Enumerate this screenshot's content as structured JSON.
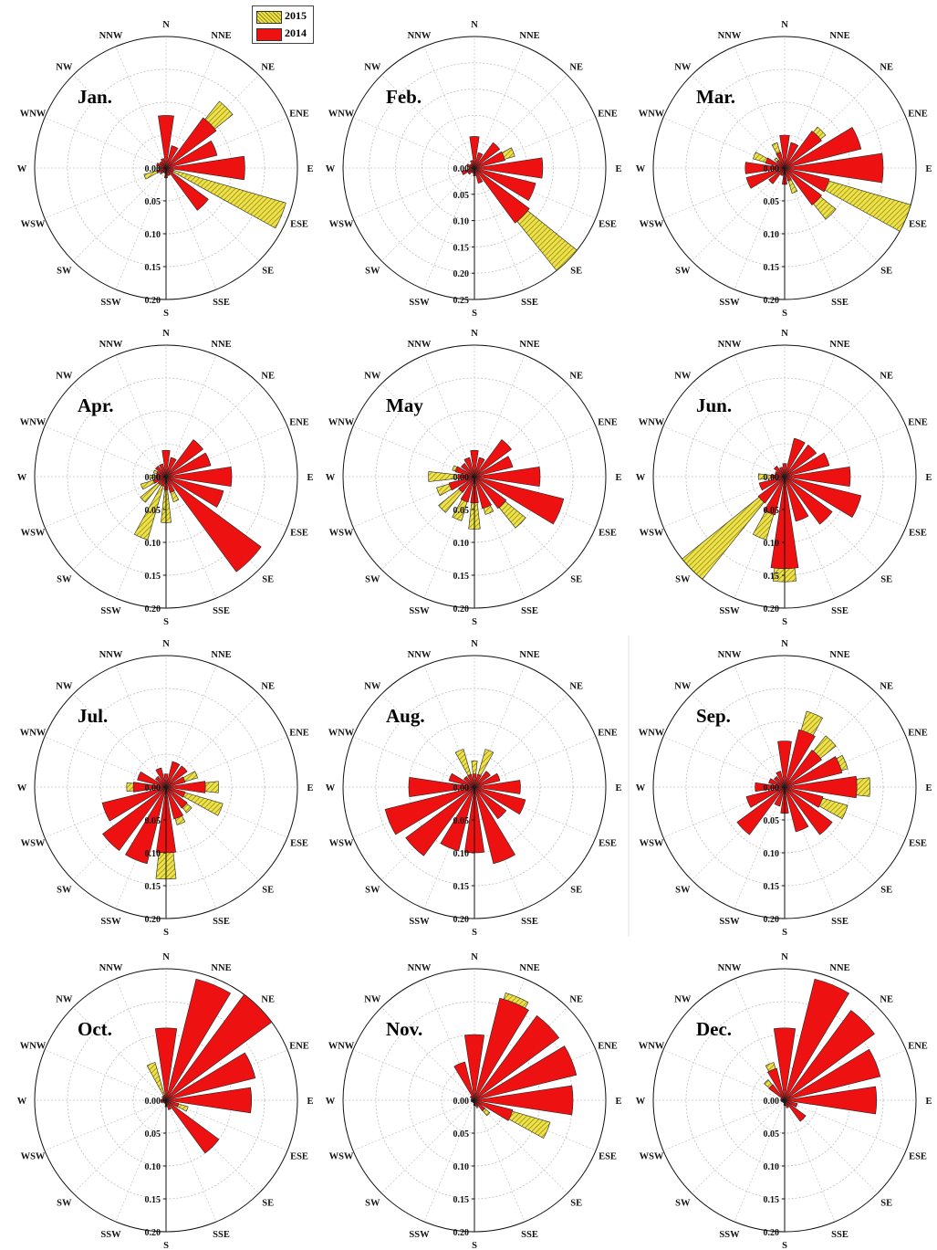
{
  "chart_data": {
    "type": "wind-rose",
    "legend": [
      {
        "name": "2015",
        "color": "#e8e040",
        "pattern": "hatched"
      },
      {
        "name": "2014",
        "color": "#ee1111",
        "pattern": "solid"
      }
    ],
    "directions": [
      "N",
      "NNE",
      "NE",
      "ENE",
      "E",
      "ESE",
      "SE",
      "SSE",
      "S",
      "SSW",
      "SW",
      "WSW",
      "W",
      "WNW",
      "NW",
      "NNW"
    ],
    "radial_unit": "frequency",
    "panels": [
      {
        "month": "Jan.",
        "rmax": 0.2,
        "radial_ticks": [
          "0.00",
          "0.05",
          "0.10",
          "0.15",
          "0.20"
        ],
        "series": [
          {
            "name": "2014",
            "values": [
              0.08,
              0.035,
              0.095,
              0.08,
              0.12,
              0.012,
              0.08,
              0.012,
              0.015,
              0.008,
              0.01,
              0.015,
              0.008,
              0.015,
              0.012,
              0.015
            ]
          },
          {
            "name": "2015",
            "values": [
              0.06,
              0.03,
              0.13,
              0.07,
              0.11,
              0.19,
              0.07,
              0.009,
              0.012,
              0.006,
              0.012,
              0.035,
              0.012,
              0.01,
              0.008,
              0.012
            ]
          }
        ]
      },
      {
        "month": "Feb.",
        "rmax": 0.25,
        "radial_ticks": [
          "0.00",
          "0.05",
          "0.10",
          "0.15",
          "0.20",
          "0.25"
        ],
        "series": [
          {
            "name": "2014",
            "values": [
              0.06,
              0.03,
              0.06,
              0.06,
              0.13,
              0.12,
              0.13,
              0.03,
              0.015,
              0.01,
              0.015,
              0.025,
              0.01,
              0.015,
              0.01,
              0.015
            ]
          },
          {
            "name": "2015",
            "values": [
              0.05,
              0.03,
              0.04,
              0.08,
              0.09,
              0.1,
              0.25,
              0.02,
              0.01,
              0.008,
              0.012,
              0.02,
              0.008,
              0.012,
              0.008,
              0.01
            ]
          }
        ]
      },
      {
        "month": "Mar.",
        "rmax": 0.2,
        "radial_ticks": [
          "0.00",
          "0.05",
          "0.10",
          "0.15",
          "0.20"
        ],
        "series": [
          {
            "name": "2014",
            "values": [
              0.05,
              0.04,
              0.07,
              0.12,
              0.15,
              0.07,
              0.07,
              0.02,
              0.025,
              0.012,
              0.03,
              0.06,
              0.06,
              0.03,
              0.015,
              0.025
            ]
          },
          {
            "name": "2015",
            "values": [
              0.04,
              0.035,
              0.08,
              0.09,
              0.1,
              0.2,
              0.1,
              0.04,
              0.015,
              0.01,
              0.01,
              0.05,
              0.05,
              0.05,
              0.02,
              0.04
            ]
          }
        ]
      },
      {
        "month": "Apr.",
        "rmax": 0.2,
        "radial_ticks": [
          "0.00",
          "0.05",
          "0.10",
          "0.15",
          "0.20"
        ],
        "series": [
          {
            "name": "2014",
            "values": [
              0.04,
              0.03,
              0.07,
              0.07,
              0.1,
              0.09,
              0.18,
              0.025,
              0.02,
              0.015,
              0.015,
              0.02,
              0.015,
              0.015,
              0.02,
              0.02
            ]
          },
          {
            "name": "2015",
            "values": [
              0.035,
              0.03,
              0.04,
              0.07,
              0.08,
              0.04,
              0.06,
              0.04,
              0.07,
              0.1,
              0.05,
              0.04,
              0.025,
              0.02,
              0.015,
              0.015
            ]
          }
        ]
      },
      {
        "month": "May",
        "rmax": 0.2,
        "radial_ticks": [
          "0.00",
          "0.05",
          "0.10",
          "0.15",
          "0.20"
        ],
        "series": [
          {
            "name": "2014",
            "values": [
              0.04,
              0.03,
              0.07,
              0.06,
              0.1,
              0.14,
              0.06,
              0.05,
              0.04,
              0.04,
              0.03,
              0.04,
              0.025,
              0.03,
              0.025,
              0.03
            ]
          },
          {
            "name": "2015",
            "values": [
              0.035,
              0.03,
              0.05,
              0.05,
              0.07,
              0.08,
              0.1,
              0.06,
              0.08,
              0.07,
              0.07,
              0.06,
              0.07,
              0.035,
              0.025,
              0.025
            ]
          }
        ]
      },
      {
        "month": "Jun.",
        "rmax": 0.2,
        "radial_ticks": [
          "0.00",
          "0.05",
          "0.10",
          "0.15",
          "0.20"
        ],
        "series": [
          {
            "name": "2014",
            "values": [
              0.02,
              0.06,
              0.06,
              0.07,
              0.1,
              0.12,
              0.09,
              0.07,
              0.14,
              0.06,
              0.05,
              0.04,
              0.02,
              0.015,
              0.02,
              0.015
            ]
          },
          {
            "name": "2015",
            "values": [
              0.015,
              0.04,
              0.05,
              0.06,
              0.08,
              0.11,
              0.07,
              0.06,
              0.16,
              0.1,
              0.22,
              0.03,
              0.04,
              0.015,
              0.015,
              0.01
            ]
          }
        ]
      },
      {
        "month": "Jul.",
        "rmax": 0.2,
        "radial_ticks": [
          "0.00",
          "0.05",
          "0.10",
          "0.15",
          "0.20"
        ],
        "series": [
          {
            "name": "2014",
            "values": [
              0.02,
              0.04,
              0.04,
              0.03,
              0.06,
              0.03,
              0.04,
              0.05,
              0.1,
              0.12,
              0.12,
              0.1,
              0.05,
              0.045,
              0.02,
              0.03
            ]
          },
          {
            "name": "2015",
            "values": [
              0.015,
              0.03,
              0.03,
              0.05,
              0.08,
              0.09,
              0.05,
              0.06,
              0.14,
              0.09,
              0.06,
              0.07,
              0.06,
              0.04,
              0.02,
              0.03
            ]
          }
        ]
      },
      {
        "month": "Aug.",
        "rmax": 0.2,
        "radial_ticks": [
          "0.00",
          "0.05",
          "0.10",
          "0.15",
          "0.20"
        ],
        "series": [
          {
            "name": "2014",
            "values": [
              0.02,
              0.02,
              0.03,
              0.04,
              0.07,
              0.08,
              0.06,
              0.12,
              0.1,
              0.1,
              0.13,
              0.14,
              0.1,
              0.04,
              0.02,
              0.02
            ]
          },
          {
            "name": "2015",
            "values": [
              0.04,
              0.06,
              0.03,
              0.04,
              0.07,
              0.04,
              0.04,
              0.06,
              0.07,
              0.08,
              0.07,
              0.09,
              0.08,
              0.03,
              0.02,
              0.06
            ]
          }
        ]
      },
      {
        "month": "Sep.",
        "rmax": 0.2,
        "radial_ticks": [
          "0.00",
          "0.05",
          "0.10",
          "0.15",
          "0.20"
        ],
        "series": [
          {
            "name": "2014",
            "values": [
              0.07,
              0.09,
              0.07,
              0.09,
              0.11,
              0.06,
              0.09,
              0.07,
              0.04,
              0.03,
              0.09,
              0.06,
              0.045,
              0.025,
              0.02,
              0.025
            ]
          },
          {
            "name": "2015",
            "values": [
              0.06,
              0.12,
              0.1,
              0.1,
              0.13,
              0.1,
              0.05,
              0.05,
              0.03,
              0.02,
              0.03,
              0.05,
              0.04,
              0.02,
              0.02,
              0.02
            ]
          }
        ]
      },
      {
        "month": "Oct.",
        "rmax": 0.2,
        "radial_ticks": [
          "0.00",
          "0.05",
          "0.10",
          "0.15",
          "0.20"
        ],
        "series": [
          {
            "name": "2014",
            "values": [
              0.11,
              0.19,
              0.2,
              0.14,
              0.13,
              0.02,
              0.1,
              0.015,
              0.01,
              0.005,
              0.005,
              0.008,
              0.008,
              0.006,
              0.006,
              0.008
            ]
          },
          {
            "name": "2015",
            "values": [
              0.06,
              0.17,
              0.19,
              0.14,
              0.13,
              0.035,
              0.07,
              0.012,
              0.008,
              0.004,
              0.004,
              0.006,
              0.006,
              0.006,
              0.008,
              0.06
            ]
          }
        ]
      },
      {
        "month": "Nov.",
        "rmax": 0.2,
        "radial_ticks": [
          "0.00",
          "0.05",
          "0.10",
          "0.15",
          "0.20"
        ],
        "series": [
          {
            "name": "2014",
            "values": [
              0.1,
              0.16,
              0.16,
              0.16,
              0.15,
              0.06,
              0.02,
              0.01,
              0.008,
              0.004,
              0.004,
              0.005,
              0.005,
              0.005,
              0.008,
              0.06
            ]
          },
          {
            "name": "2015",
            "values": [
              0.06,
              0.17,
              0.14,
              0.14,
              0.14,
              0.12,
              0.03,
              0.012,
              0.008,
              0.004,
              0.004,
              0.005,
              0.005,
              0.005,
              0.006,
              0.04
            ]
          }
        ]
      },
      {
        "month": "Dec.",
        "rmax": 0.2,
        "radial_ticks": [
          "0.00",
          "0.05",
          "0.10",
          "0.15",
          "0.20"
        ],
        "series": [
          {
            "name": "2014",
            "values": [
              0.11,
              0.19,
              0.17,
              0.15,
              0.14,
              0.02,
              0.04,
              0.012,
              0.008,
              0.004,
              0.004,
              0.005,
              0.005,
              0.006,
              0.03,
              0.05
            ]
          },
          {
            "name": "2015",
            "values": [
              0.1,
              0.17,
              0.16,
              0.13,
              0.12,
              0.02,
              0.03,
              0.01,
              0.006,
              0.004,
              0.004,
              0.005,
              0.006,
              0.006,
              0.04,
              0.06
            ]
          }
        ]
      }
    ]
  }
}
